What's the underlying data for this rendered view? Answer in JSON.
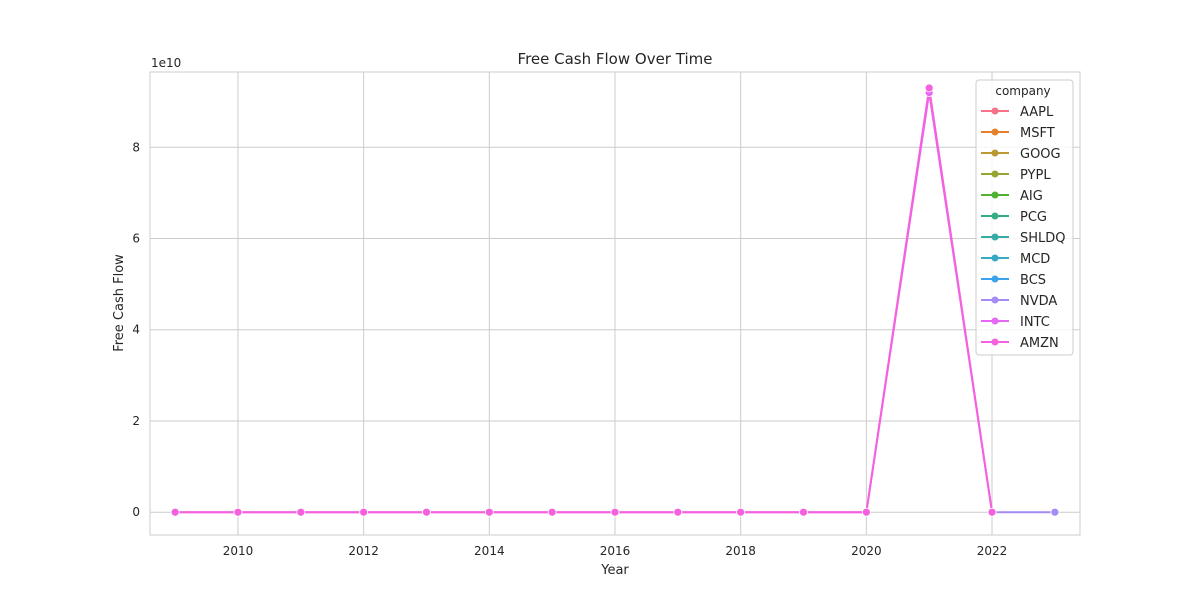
{
  "chart_data": {
    "type": "line",
    "title": "Free Cash Flow Over Time",
    "xlabel": "Year",
    "ylabel": "Free Cash Flow",
    "y_multiplier_label": "1e10",
    "xlim": [
      2008.6,
      2023.4
    ],
    "ylim": [
      -0.5,
      9.65
    ],
    "x_ticks": [
      2010,
      2012,
      2014,
      2016,
      2018,
      2020,
      2022
    ],
    "y_ticks": [
      0,
      2,
      4,
      6,
      8
    ],
    "grid": true,
    "legend": {
      "title": "company",
      "placement": "top-right"
    },
    "series": [
      {
        "name": "AAPL",
        "color": "#f77189",
        "x": [],
        "y": []
      },
      {
        "name": "MSFT",
        "color": "#e5802e",
        "x": [],
        "y": []
      },
      {
        "name": "GOOG",
        "color": "#bb9832",
        "x": [],
        "y": []
      },
      {
        "name": "PYPL",
        "color": "#97a431",
        "x": [],
        "y": []
      },
      {
        "name": "AIG",
        "color": "#50b131",
        "x": [],
        "y": []
      },
      {
        "name": "PCG",
        "color": "#34af84",
        "x": [],
        "y": []
      },
      {
        "name": "SHLDQ",
        "color": "#36ada4",
        "x": [],
        "y": []
      },
      {
        "name": "MCD",
        "color": "#38a9c5",
        "x": [],
        "y": []
      },
      {
        "name": "BCS",
        "color": "#3ba3ec",
        "x": [],
        "y": []
      },
      {
        "name": "NVDA",
        "color": "#a48cf4",
        "x": [
          2022,
          2023
        ],
        "y": [
          0,
          0
        ]
      },
      {
        "name": "INTC",
        "color": "#e866f4",
        "x": [
          2009,
          2010,
          2011,
          2012,
          2013,
          2014,
          2015,
          2016,
          2017,
          2018,
          2019,
          2020,
          2021,
          2022
        ],
        "y": [
          0,
          0,
          0,
          0,
          0,
          0,
          0,
          0,
          0,
          0,
          0,
          0,
          9.2,
          0
        ]
      },
      {
        "name": "AMZN",
        "color": "#f561dd",
        "x": [
          2009,
          2010,
          2011,
          2012,
          2013,
          2014,
          2015,
          2016,
          2017,
          2018,
          2019,
          2020,
          2021,
          2022
        ],
        "y": [
          0,
          0,
          0,
          0,
          0,
          0,
          0,
          0,
          0,
          0,
          0,
          0,
          9.3,
          0
        ]
      }
    ]
  }
}
